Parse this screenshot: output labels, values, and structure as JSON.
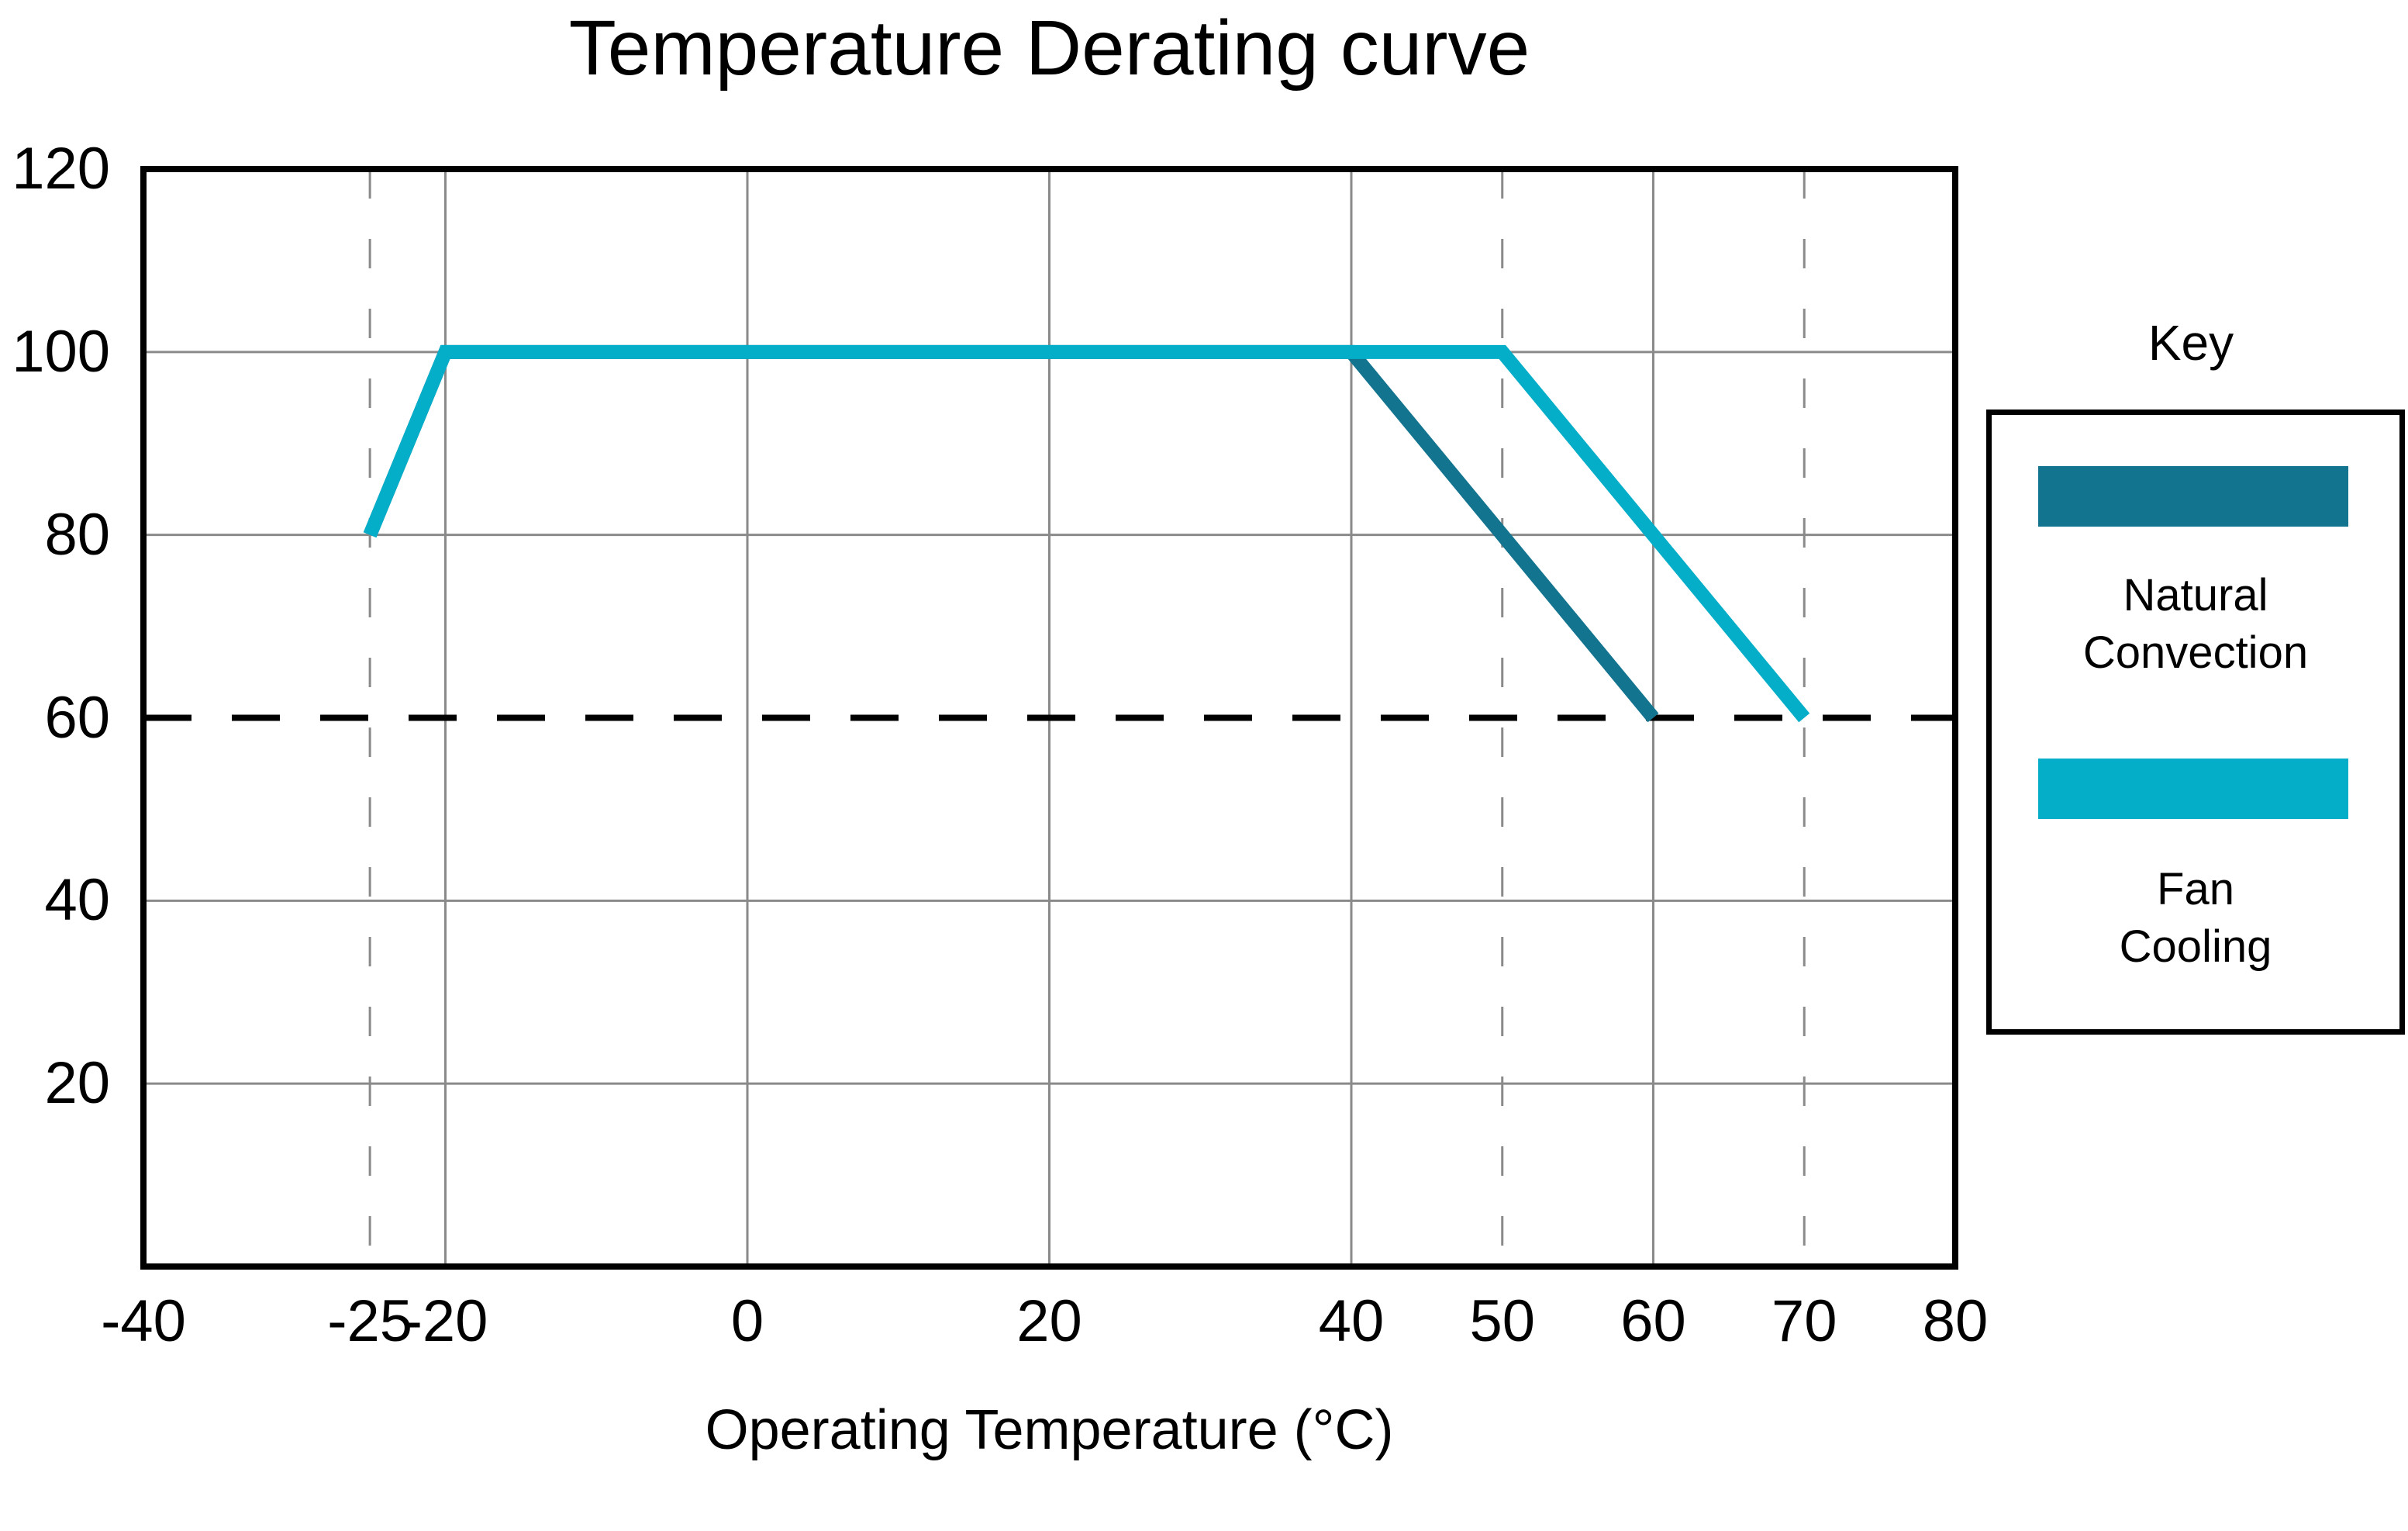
{
  "page": {
    "background": "#FFFFFF"
  },
  "chart_data": {
    "type": "line",
    "title": "Temperature Derating curve",
    "xlabel": "Operating Temperature (°C)",
    "ylabel": "",
    "xlim": [
      -40,
      80
    ],
    "ylim": [
      0,
      120
    ],
    "x_ticks": [
      -40,
      -25,
      -20,
      0,
      20,
      40,
      50,
      60,
      70,
      80
    ],
    "y_ticks": [
      20,
      40,
      60,
      80,
      100,
      120
    ],
    "grid": {
      "x_solid": [
        -20,
        0,
        20,
        40,
        60
      ],
      "x_dashed": [
        -25,
        50,
        70
      ],
      "y_solid": [
        20,
        40,
        80,
        100
      ],
      "y_dashed_black": [
        60
      ],
      "solid_color": "#8A8A8A",
      "dashed_color": "#8A8A8A",
      "threshold_color": "#000000"
    },
    "axis_color": "#000000",
    "legend_position": "right",
    "series": [
      {
        "name": "Natural Convection",
        "color": "#13748F",
        "points": [
          [
            -25,
            80
          ],
          [
            -20,
            100
          ],
          [
            40,
            100
          ],
          [
            60,
            60
          ]
        ]
      },
      {
        "name": "Fan Cooling",
        "color": "#04AEC8",
        "points": [
          [
            -25,
            80
          ],
          [
            -20,
            100
          ],
          [
            50,
            100
          ],
          [
            70,
            60
          ]
        ]
      }
    ]
  },
  "legend": {
    "title": "Key",
    "entries": [
      {
        "series": "Natural Convection",
        "lines": [
          "Natural",
          "Convection"
        ]
      },
      {
        "series": "Fan Cooling",
        "lines": [
          "Fan",
          "Cooling"
        ]
      }
    ]
  }
}
